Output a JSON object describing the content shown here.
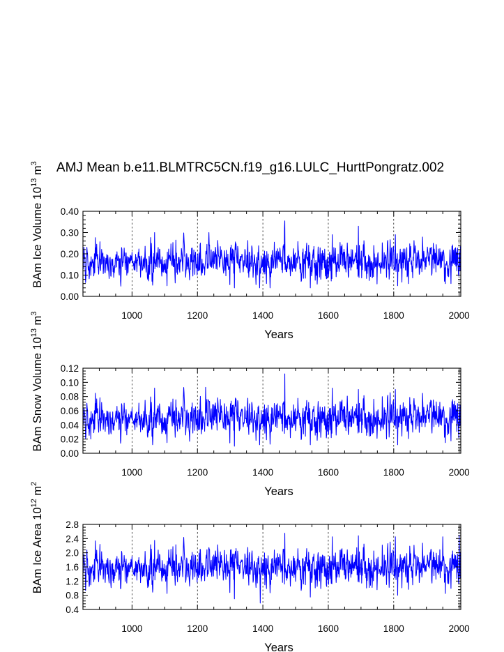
{
  "title": "AMJ Mean b.e11.BLMTRC5CN.f19_g16.LULC_HurttPongratz.002",
  "chart_data": [
    {
      "type": "line",
      "ylabel": {
        "main": "BAm Ice Volume 10",
        "exp": "13",
        "unit": " m",
        "unit_exp": "3"
      },
      "xlabel": "Years",
      "xlim": [
        850,
        2005
      ],
      "ylim": [
        0.0,
        0.4
      ],
      "xticks": [
        1000,
        1200,
        1400,
        1600,
        1800,
        2000
      ],
      "yticks": [
        0.0,
        0.1,
        0.2,
        0.3,
        0.4
      ],
      "ytick_labels": [
        "0.00",
        "0.10",
        "0.20",
        "0.30",
        "0.40"
      ],
      "grid": "vertical dashed at x ticks",
      "series": [
        {
          "name": "BAm Ice Volume",
          "color": "#0000ff",
          "x_start": 850,
          "x_step": 1,
          "mean": 0.165,
          "spread": 0.048,
          "min": 0.04,
          "max": 0.355,
          "peaks": [
            [
              1467,
              0.355
            ],
            [
              1692,
              0.33
            ],
            [
              1466,
              0.32
            ],
            [
              1612,
              0.29
            ],
            [
              1805,
              0.29
            ],
            [
              1235,
              0.3
            ],
            [
              1069,
              0.3
            ]
          ],
          "troughs": [
            [
              1313,
              0.04
            ],
            [
              1390,
              0.04
            ],
            [
              1545,
              0.04
            ],
            [
              1812,
              0.05
            ],
            [
              1107,
              0.05
            ],
            [
              1958,
              0.06
            ]
          ]
        }
      ]
    },
    {
      "type": "line",
      "ylabel": {
        "main": "BAm Snow Volume 10",
        "exp": "13",
        "unit": " m",
        "unit_exp": "3"
      },
      "xlabel": "Years",
      "xlim": [
        850,
        2005
      ],
      "ylim": [
        0.0,
        0.12
      ],
      "xticks": [
        1000,
        1200,
        1400,
        1600,
        1800,
        2000
      ],
      "yticks": [
        0.0,
        0.02,
        0.04,
        0.06,
        0.08,
        0.1,
        0.12
      ],
      "ytick_labels": [
        "0.00",
        "0.02",
        "0.04",
        "0.06",
        "0.08",
        "0.10",
        "0.12"
      ],
      "grid": "vertical dashed at x ticks",
      "series": [
        {
          "name": "BAm Snow Volume",
          "color": "#0000ff",
          "x_start": 850,
          "x_step": 1,
          "mean": 0.05,
          "spread": 0.015,
          "min": 0.01,
          "max": 0.112,
          "peaks": [
            [
              1467,
              0.112
            ],
            [
              1225,
              0.093
            ],
            [
              1069,
              0.092
            ],
            [
              1612,
              0.092
            ],
            [
              1805,
              0.09
            ],
            [
              1692,
              0.09
            ]
          ],
          "troughs": [
            [
              1313,
              0.01
            ],
            [
              1390,
              0.012
            ],
            [
              1545,
              0.012
            ],
            [
              1812,
              0.012
            ],
            [
              1107,
              0.015
            ],
            [
              1958,
              0.015
            ]
          ]
        }
      ]
    },
    {
      "type": "line",
      "ylabel": {
        "main": "BAm Ice Area 10",
        "exp": "12",
        "unit": " m",
        "unit_exp": "2"
      },
      "xlabel": "Years",
      "xlim": [
        850,
        2005
      ],
      "ylim": [
        0.4,
        2.8
      ],
      "xticks": [
        1000,
        1200,
        1400,
        1600,
        1800,
        2000
      ],
      "yticks": [
        0.4,
        0.8,
        1.2,
        1.6,
        2.0,
        2.4,
        2.8
      ],
      "ytick_labels": [
        "0.4",
        "0.8",
        "1.2",
        "1.6",
        "2.0",
        "2.4",
        "2.8"
      ],
      "grid": "vertical dashed at x ticks",
      "series": [
        {
          "name": "BAm Ice Area",
          "color": "#0000ff",
          "x_start": 850,
          "x_step": 1,
          "mean": 1.6,
          "spread": 0.3,
          "min": 0.58,
          "max": 2.55,
          "peaks": [
            [
              1467,
              2.55
            ],
            [
              2000,
              2.5
            ],
            [
              1692,
              2.48
            ],
            [
              1612,
              2.45
            ],
            [
              1805,
              2.45
            ],
            [
              1950,
              2.45
            ],
            [
              1069,
              2.35
            ]
          ],
          "troughs": [
            [
              1392,
              0.58
            ],
            [
              1313,
              0.7
            ],
            [
              1545,
              0.75
            ],
            [
              1812,
              0.8
            ],
            [
              1107,
              0.85
            ],
            [
              1958,
              0.85
            ]
          ]
        }
      ]
    }
  ]
}
